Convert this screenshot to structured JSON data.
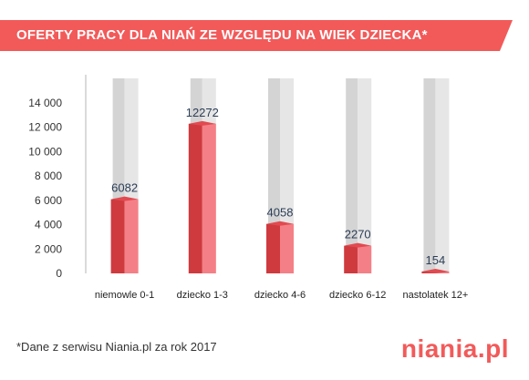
{
  "header": {
    "title": "OFERTY PRACY DLA NIAŃ ZE WZGLĘDU NA WIEK DZIECKA*"
  },
  "footnote": "*Dane z serwisu Niania.pl za rok 2017",
  "brand": {
    "name": "niania",
    "suffix": ".pl"
  },
  "colors": {
    "accent": "#f25a5a",
    "bar_dark": "#cf3a3f",
    "bar_light": "#f57f86",
    "bg_bar": "#e6e6e6"
  },
  "chart_data": {
    "type": "bar",
    "categories": [
      "niemowle 0-1",
      "dziecko 1-3",
      "dziecko 4-6",
      "dziecko 6-12",
      "nastolatek 12+"
    ],
    "values": [
      6082,
      12272,
      4058,
      2270,
      154
    ],
    "value_labels": [
      "6082",
      "12272",
      "4058",
      "2270",
      "154"
    ],
    "ylim": [
      0,
      16000
    ],
    "yticks": [
      0,
      2000,
      4000,
      6000,
      8000,
      10000,
      12000,
      14000
    ],
    "ytick_labels": [
      "0",
      "2 000",
      "4 000",
      "6 000",
      "8 000",
      "10 000",
      "12 000",
      "14 000"
    ],
    "title": "",
    "xlabel": "",
    "ylabel": "",
    "grid": false,
    "legend": "none"
  }
}
